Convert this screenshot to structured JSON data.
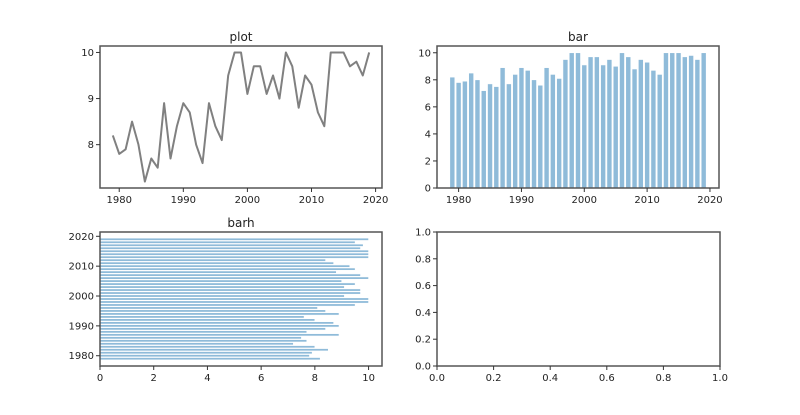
{
  "chart_data": [
    {
      "type": "line",
      "title": "plot",
      "x": [
        1979,
        1980,
        1981,
        1982,
        1983,
        1984,
        1985,
        1986,
        1987,
        1988,
        1989,
        1990,
        1991,
        1992,
        1993,
        1994,
        1995,
        1996,
        1997,
        1998,
        1999,
        2000,
        2001,
        2002,
        2003,
        2004,
        2005,
        2006,
        2007,
        2008,
        2009,
        2010,
        2011,
        2012,
        2013,
        2014,
        2015,
        2016,
        2017,
        2018,
        2019
      ],
      "y": [
        8.2,
        7.8,
        7.9,
        8.5,
        8.0,
        7.2,
        7.7,
        7.5,
        8.9,
        7.7,
        8.4,
        8.9,
        8.7,
        8.0,
        7.6,
        8.9,
        8.4,
        8.1,
        9.5,
        10,
        10,
        9.1,
        9.7,
        9.7,
        9.1,
        9.5,
        9.0,
        10,
        9.7,
        8.8,
        9.5,
        9.3,
        8.7,
        8.4,
        10,
        10,
        10,
        9.7,
        9.8,
        9.5,
        10
      ],
      "xlim": [
        1977,
        2021
      ],
      "ylim": [
        7.06,
        10.14
      ],
      "xticks": [
        "1980",
        "1990",
        "2000",
        "2010",
        "2020"
      ],
      "yticks": [
        "8",
        "9",
        "10"
      ],
      "color": "#808080"
    },
    {
      "type": "bar",
      "title": "bar",
      "source": "same data as plot",
      "xlim": [
        1976.56,
        2021.44
      ],
      "ylim": [
        0,
        10.5
      ],
      "xticks": [
        "1980",
        "1990",
        "2000",
        "2010",
        "2020"
      ],
      "yticks": [
        "0",
        "2",
        "4",
        "6",
        "8",
        "10"
      ],
      "color": "#8fbbd9"
    },
    {
      "type": "bar",
      "orientation": "horizontal",
      "title": "barh",
      "source": "same data as plot",
      "xlim": [
        0,
        10.5
      ],
      "ylim": [
        1976.56,
        2021.44
      ],
      "xticks": [
        "0",
        "2",
        "4",
        "6",
        "8",
        "10"
      ],
      "yticks": [
        "1980",
        "1990",
        "2000",
        "2010",
        "2020"
      ],
      "color": "#8fbbd9"
    },
    {
      "type": "line",
      "title": "",
      "empty": true,
      "xlim": [
        0,
        1
      ],
      "ylim": [
        0,
        1
      ],
      "xticks": [
        "0.0",
        "0.2",
        "0.4",
        "0.6",
        "0.8",
        "1.0"
      ],
      "yticks": [
        "0.0",
        "0.2",
        "0.4",
        "0.6",
        "0.8",
        "1.0"
      ]
    }
  ]
}
